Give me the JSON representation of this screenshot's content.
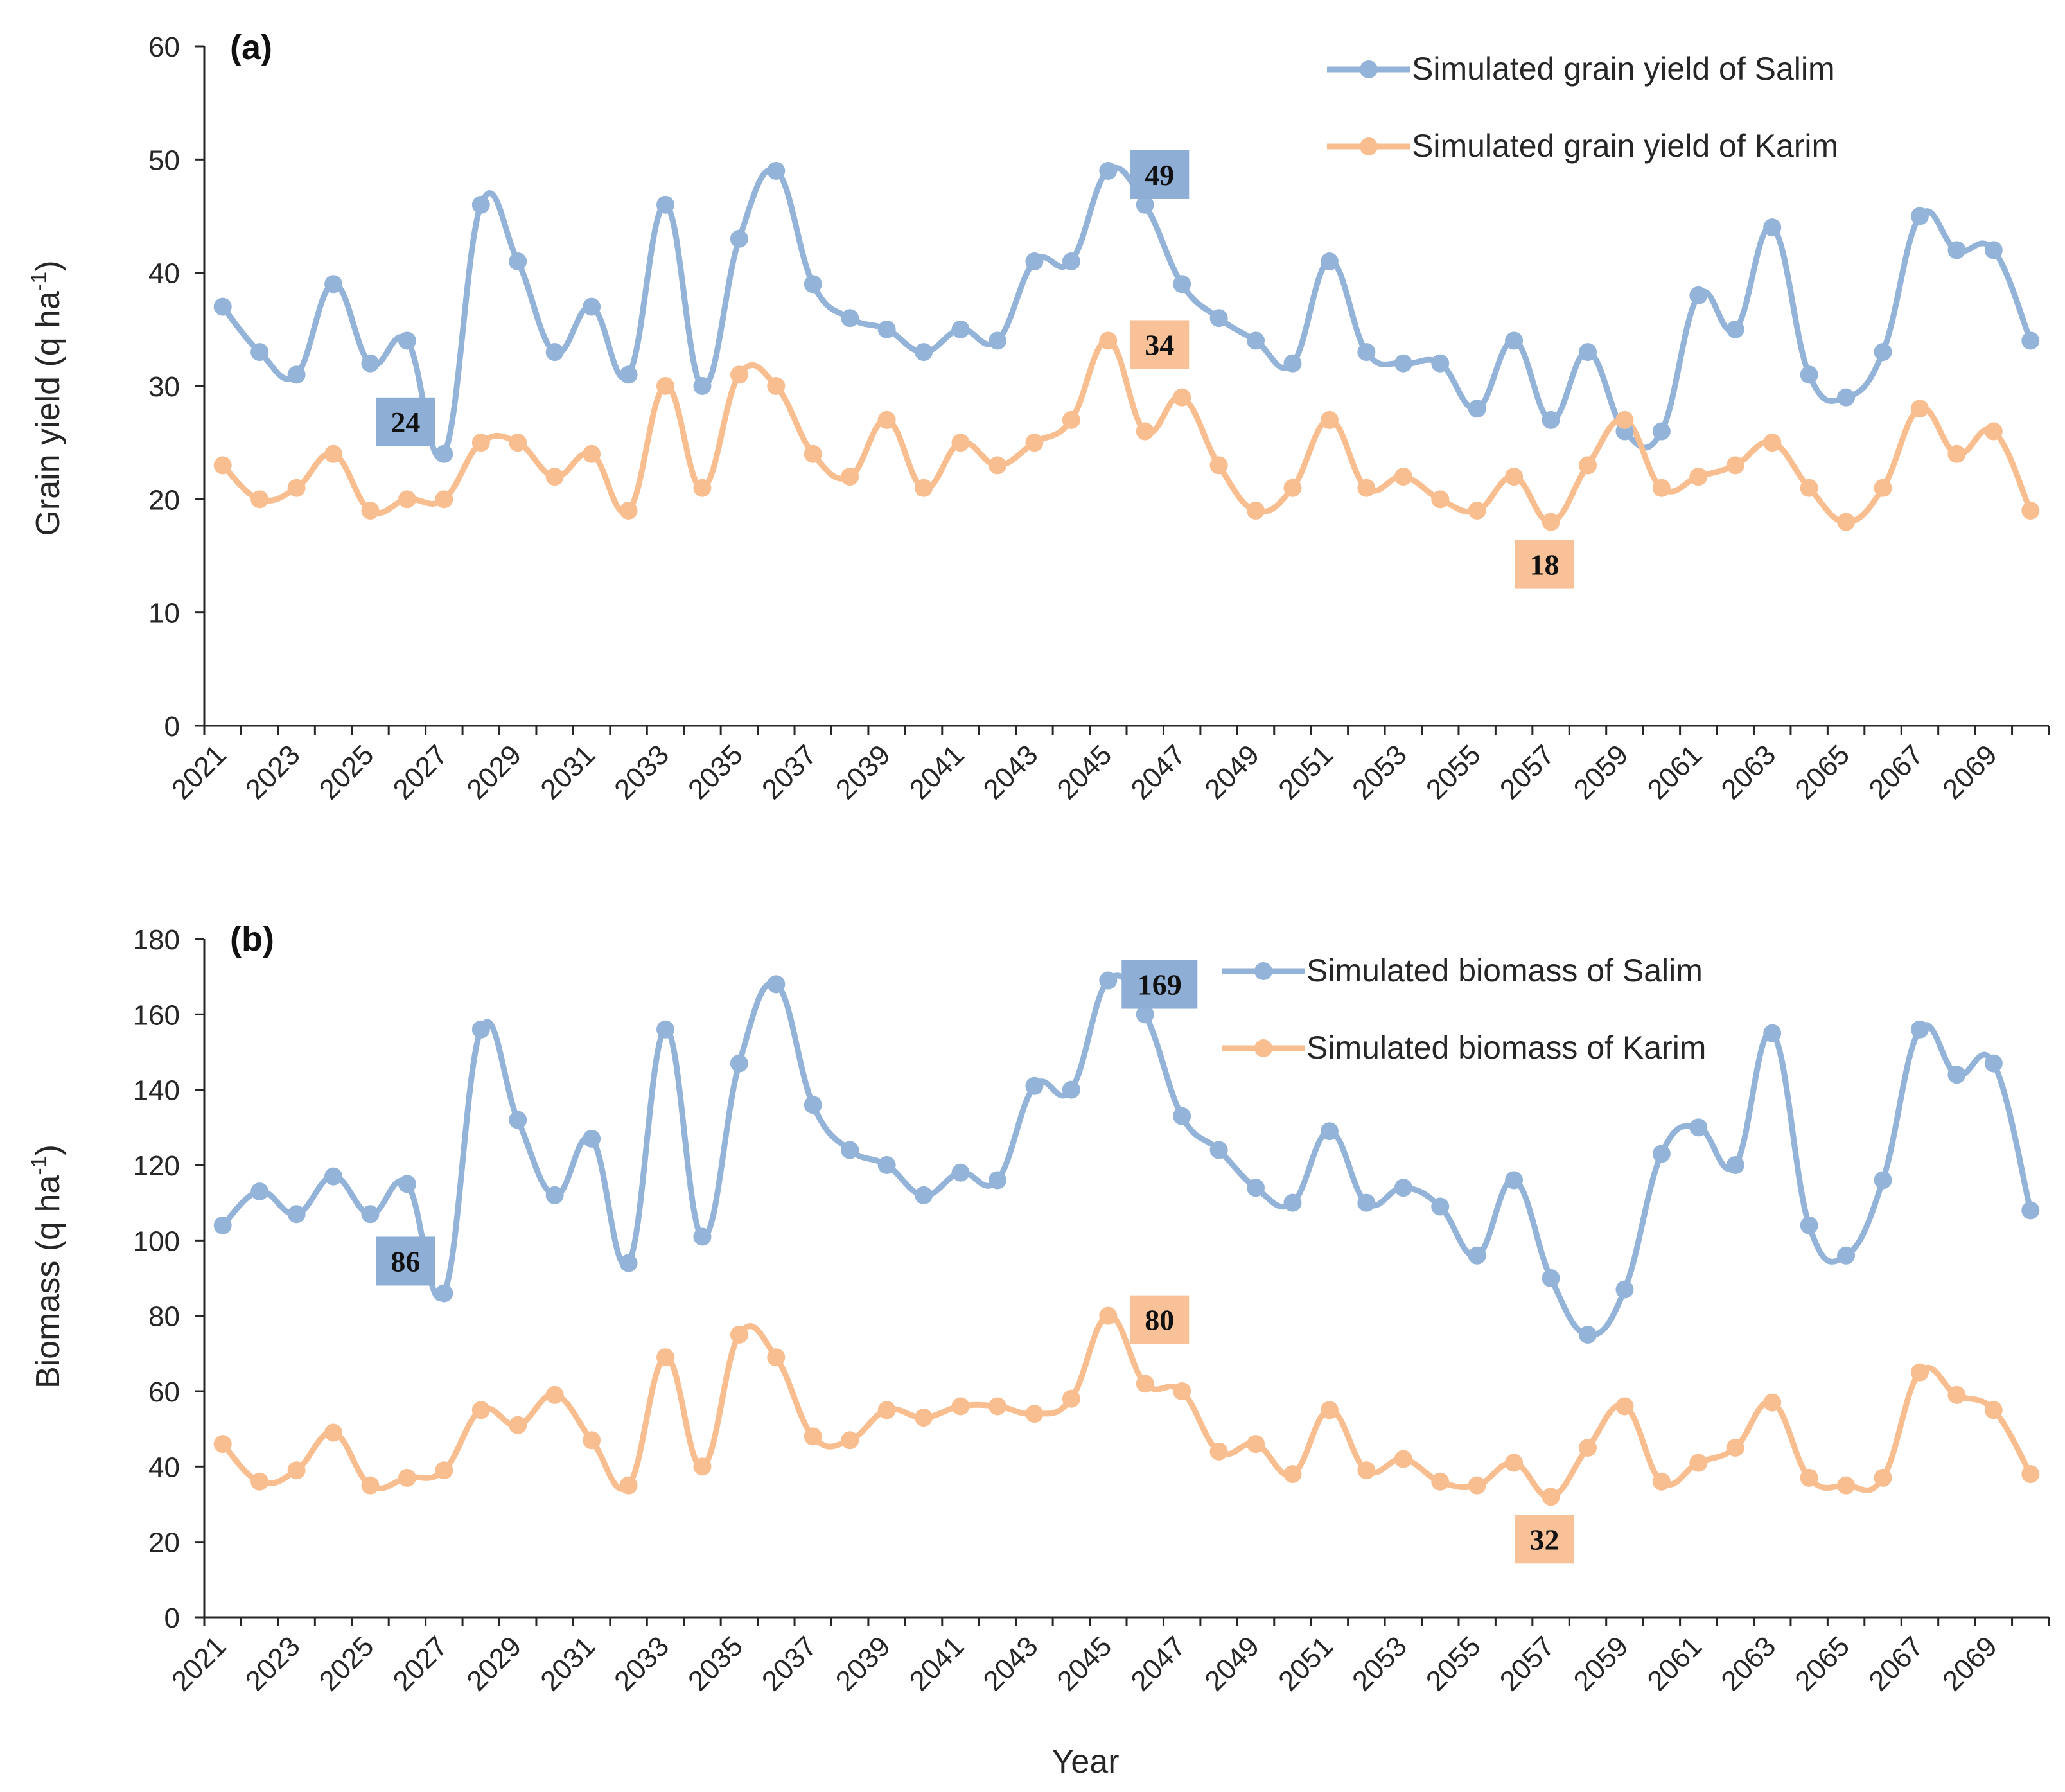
{
  "colors": {
    "salim": "#94b3d9",
    "karim": "#f9be90",
    "callout_salim": "#8eaed6",
    "callout_karim": "#f8c197",
    "axis": "#262626"
  },
  "xlabel_shared": "Year",
  "chart_data": [
    {
      "type": "line",
      "panel_label": "(a)",
      "ylabel_main": "Grain yield (q ha",
      "ylabel_sup": "-1",
      "ylabel_end": ")",
      "xlabel": "Year",
      "ylim": [
        0,
        60
      ],
      "yticks": [
        0,
        10,
        20,
        30,
        40,
        50,
        60
      ],
      "ytick_labels": [
        "0",
        "10",
        "20",
        "30",
        "40",
        "50",
        "60"
      ],
      "xticks": [
        2021,
        2023,
        2025,
        2027,
        2029,
        2031,
        2033,
        2035,
        2037,
        2039,
        2041,
        2043,
        2045,
        2047,
        2049,
        2051,
        2053,
        2055,
        2057,
        2059,
        2061,
        2063,
        2065,
        2067,
        2069
      ],
      "xtick_labels": [
        "2021",
        "2023",
        "2025",
        "2027",
        "2029",
        "2031",
        "2033",
        "2035",
        "2037",
        "2039",
        "2041",
        "2043",
        "2045",
        "2047",
        "2049",
        "2051",
        "2053",
        "2055",
        "2057",
        "2059",
        "2061",
        "2063",
        "2065",
        "2067",
        "2069"
      ],
      "x": [
        2021,
        2022,
        2023,
        2024,
        2025,
        2026,
        2027,
        2028,
        2029,
        2030,
        2031,
        2032,
        2033,
        2034,
        2035,
        2036,
        2037,
        2038,
        2039,
        2040,
        2041,
        2042,
        2043,
        2044,
        2045,
        2046,
        2047,
        2048,
        2049,
        2050,
        2051,
        2052,
        2053,
        2054,
        2055,
        2056,
        2057,
        2058,
        2059,
        2060,
        2061,
        2062,
        2063,
        2064,
        2065,
        2066,
        2067,
        2068,
        2069,
        2070
      ],
      "series": [
        {
          "name": "Simulated grain yield of Salim",
          "key": "salim",
          "values": [
            37,
            33,
            31,
            39,
            32,
            34,
            24,
            46,
            41,
            33,
            37,
            31,
            46,
            30,
            43,
            49,
            39,
            36,
            35,
            33,
            35,
            34,
            41,
            41,
            49,
            46,
            39,
            36,
            34,
            32,
            41,
            33,
            32,
            32,
            28,
            34,
            27,
            33,
            26,
            26,
            38,
            35,
            44,
            31,
            29,
            33,
            45,
            42,
            42,
            34
          ]
        },
        {
          "name": "Simulated grain yield of Karim",
          "key": "karim",
          "values": [
            23,
            20,
            21,
            24,
            19,
            20,
            20,
            25,
            25,
            22,
            24,
            19,
            30,
            21,
            31,
            30,
            24,
            22,
            27,
            21,
            25,
            23,
            25,
            27,
            34,
            26,
            29,
            23,
            19,
            21,
            27,
            21,
            22,
            20,
            19,
            22,
            18,
            23,
            27,
            21,
            22,
            23,
            25,
            21,
            18,
            21,
            28,
            24,
            26,
            19
          ]
        }
      ],
      "legend": [
        "Simulated grain yield of Salim",
        "Simulated grain yield of Karim"
      ],
      "annotations": [
        {
          "text": "24",
          "x": 2027,
          "y": 24,
          "series": "salim"
        },
        {
          "text": "49",
          "x": 2045,
          "y": 49,
          "series": "salim"
        },
        {
          "text": "34",
          "x": 2045,
          "y": 34,
          "series": "karim"
        },
        {
          "text": "18",
          "x": 2057,
          "y": 18,
          "series": "karim"
        }
      ]
    },
    {
      "type": "line",
      "panel_label": "(b)",
      "ylabel_main": "Biomass (q ha",
      "ylabel_sup": "-1",
      "ylabel_end": ")",
      "xlabel": "Year",
      "ylim": [
        0,
        180
      ],
      "yticks": [
        0,
        20,
        40,
        60,
        80,
        100,
        120,
        140,
        160,
        180
      ],
      "ytick_labels": [
        "0",
        "20",
        "40",
        "60",
        "80",
        "100",
        "120",
        "140",
        "160",
        "180"
      ],
      "xticks": [
        2021,
        2023,
        2025,
        2027,
        2029,
        2031,
        2033,
        2035,
        2037,
        2039,
        2041,
        2043,
        2045,
        2047,
        2049,
        2051,
        2053,
        2055,
        2057,
        2059,
        2061,
        2063,
        2065,
        2067,
        2069
      ],
      "xtick_labels": [
        "2021",
        "2023",
        "2025",
        "2027",
        "2029",
        "2031",
        "2033",
        "2035",
        "2037",
        "2039",
        "2041",
        "2043",
        "2045",
        "2047",
        "2049",
        "2051",
        "2053",
        "2055",
        "2057",
        "2059",
        "2061",
        "2063",
        "2065",
        "2067",
        "2069"
      ],
      "x": [
        2021,
        2022,
        2023,
        2024,
        2025,
        2026,
        2027,
        2028,
        2029,
        2030,
        2031,
        2032,
        2033,
        2034,
        2035,
        2036,
        2037,
        2038,
        2039,
        2040,
        2041,
        2042,
        2043,
        2044,
        2045,
        2046,
        2047,
        2048,
        2049,
        2050,
        2051,
        2052,
        2053,
        2054,
        2055,
        2056,
        2057,
        2058,
        2059,
        2060,
        2061,
        2062,
        2063,
        2064,
        2065,
        2066,
        2067,
        2068,
        2069,
        2070
      ],
      "series": [
        {
          "name": "Simulated biomass of Salim",
          "key": "salim",
          "values": [
            104,
            113,
            107,
            117,
            107,
            115,
            86,
            156,
            132,
            112,
            127,
            94,
            156,
            101,
            147,
            168,
            136,
            124,
            120,
            112,
            118,
            116,
            141,
            140,
            169,
            160,
            133,
            124,
            114,
            110,
            129,
            110,
            114,
            109,
            96,
            116,
            90,
            75,
            87,
            123,
            130,
            120,
            155,
            104,
            96,
            116,
            156,
            144,
            147,
            108
          ]
        },
        {
          "name": "Simulated biomass of Karim",
          "key": "karim",
          "values": [
            46,
            36,
            39,
            49,
            35,
            37,
            39,
            55,
            51,
            59,
            47,
            35,
            69,
            40,
            75,
            69,
            48,
            47,
            55,
            53,
            56,
            56,
            54,
            58,
            80,
            62,
            60,
            44,
            46,
            38,
            55,
            39,
            42,
            36,
            35,
            41,
            32,
            45,
            56,
            36,
            41,
            45,
            57,
            37,
            35,
            37,
            65,
            59,
            55,
            38
          ]
        }
      ],
      "legend": [
        "Simulated biomass of Salim",
        "Simulated biomass of Karim"
      ],
      "annotations": [
        {
          "text": "86",
          "x": 2027,
          "y": 86,
          "series": "salim"
        },
        {
          "text": "169",
          "x": 2045,
          "y": 169,
          "series": "salim"
        },
        {
          "text": "80",
          "x": 2045,
          "y": 80,
          "series": "karim"
        },
        {
          "text": "32",
          "x": 2057,
          "y": 32,
          "series": "karim"
        }
      ]
    }
  ]
}
